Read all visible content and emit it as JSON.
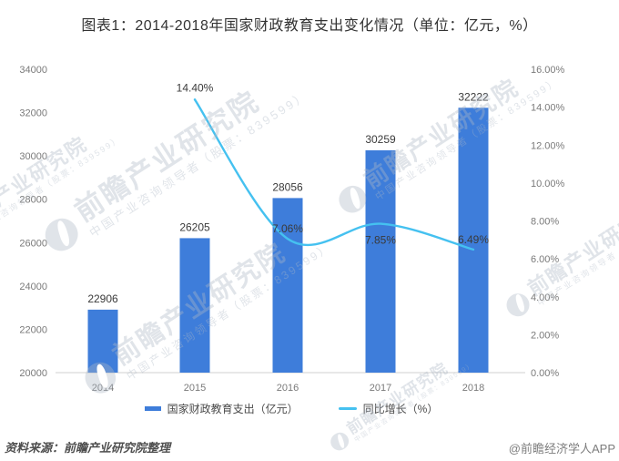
{
  "page": {
    "title": "图表1：2014-2018年国家财政教育支出变化情况（单位：亿元，%）",
    "footer": {
      "source": "资料来源：前瞻产业研究院整理",
      "credit": "@前瞻经济学人APP"
    },
    "watermark": {
      "logo_icon": "qianzhan-logo",
      "text": "前瞻产业研究院",
      "subtext": "中国产业咨询领导者（股票：839599）"
    }
  },
  "chart_data": {
    "type": "combo",
    "title": "图表1：2014-2018年国家财政教育支出变化情况（单位：亿元，%）",
    "categories": [
      "2014",
      "2015",
      "2016",
      "2017",
      "2018"
    ],
    "series": [
      {
        "name": "国家财政教育支出（亿元）",
        "chart_type": "bar",
        "axis": "left",
        "color": "#3E7DDA",
        "values": [
          22906,
          26205,
          28056,
          30259,
          32222
        ],
        "labels": [
          "22906",
          "26205",
          "28056",
          "30259",
          "32222"
        ]
      },
      {
        "name": "同比增长（%）",
        "chart_type": "line",
        "axis": "right",
        "color": "#45C1F0",
        "values": [
          null,
          14.4,
          7.06,
          7.85,
          6.49
        ],
        "labels": [
          null,
          "14.40%",
          "7.06%",
          "7.85%",
          "6.49%"
        ]
      }
    ],
    "left_axis": {
      "min": 20000,
      "max": 34000,
      "step": 2000,
      "tick_labels": [
        "20000",
        "22000",
        "24000",
        "26000",
        "28000",
        "30000",
        "32000",
        "34000"
      ]
    },
    "right_axis": {
      "min": 0,
      "max": 16,
      "step": 2,
      "tick_labels": [
        "0.00%",
        "2.00%",
        "4.00%",
        "6.00%",
        "8.00%",
        "10.00%",
        "12.00%",
        "14.00%",
        "16.00%"
      ]
    },
    "legend_position": "bottom",
    "grid": false
  }
}
